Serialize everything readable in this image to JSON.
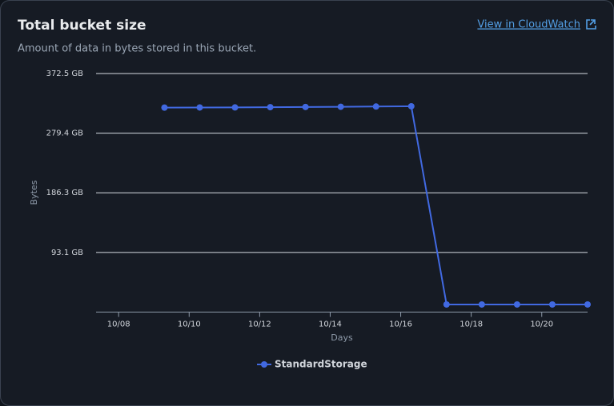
{
  "chart_data": {
    "type": "line",
    "title": "Total bucket size",
    "subtitle": "Amount of data in bytes stored in this bucket.",
    "link": "View in CloudWatch",
    "x_label": "Days",
    "y_label": "Bytes",
    "x": [
      9.3,
      10.3,
      11.3,
      12.3,
      13.3,
      14.3,
      15.3,
      16.3,
      17.3,
      18.3,
      19.3,
      20.3,
      21.3
    ],
    "series": [
      {
        "name": "StandardStorage",
        "color": "#4169e1",
        "values": [
          319.3,
          319.5,
          319.6,
          320.0,
          320.3,
          320.6,
          321.0,
          321.4,
          11.9,
          11.9,
          11.9,
          11.9,
          11.9
        ]
      }
    ],
    "xlim": [
      7.36,
      21.3
    ],
    "xticks": [
      {
        "value": 8,
        "label": "10/08"
      },
      {
        "value": 10,
        "label": "10/10"
      },
      {
        "value": 12,
        "label": "10/12"
      },
      {
        "value": 14,
        "label": "10/14"
      },
      {
        "value": 16,
        "label": "10/16"
      },
      {
        "value": 18,
        "label": "10/18"
      },
      {
        "value": 20,
        "label": "10/20"
      }
    ],
    "ylim": [
      0,
      372.5
    ],
    "yticks": [
      {
        "value": 93.1,
        "label": "93.1 GB"
      },
      {
        "value": 186.3,
        "label": "186.3 GB"
      },
      {
        "value": 279.4,
        "label": "279.4 GB"
      },
      {
        "value": 372.5,
        "label": "372.5 GB"
      }
    ],
    "grid": true,
    "legend": "bottom"
  }
}
